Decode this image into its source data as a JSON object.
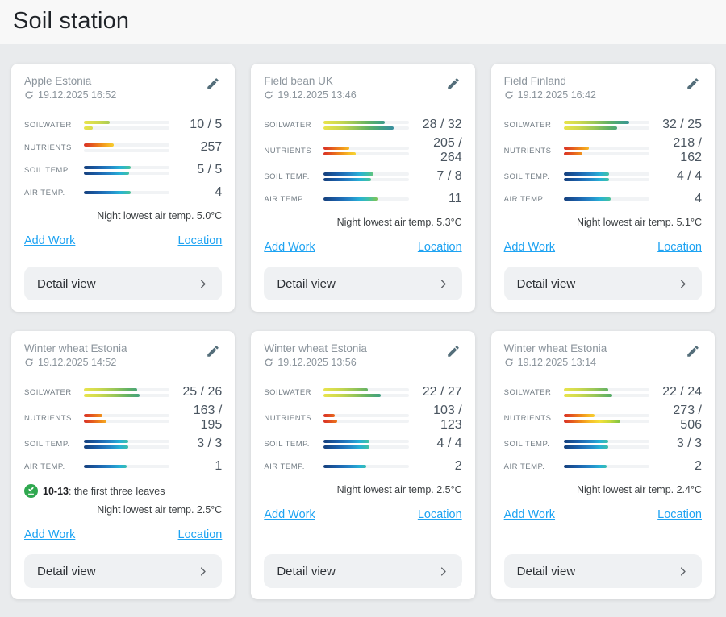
{
  "page": {
    "title": "Soil station"
  },
  "shared": {
    "add_work_label": "Add Work",
    "location_label": "Location",
    "detail_view_label": "Detail view"
  },
  "colors": {
    "page_bg": "#e9ebed",
    "header_bg": "#f8f8f8",
    "card_bg": "#ffffff",
    "button_bg": "#eff1f3",
    "link_blue": "#1ea3f2",
    "muted_text": "#8c959d",
    "value_text": "#4a5560",
    "stage_green": "#2fa84f",
    "scale_water": [
      "#e9e44c",
      "#62b164",
      "#2f7ba6"
    ],
    "scale_nutrients": [
      "#d93025",
      "#f4e03a",
      "#43a047"
    ],
    "scale_temp": [
      "#16407c",
      "#27b0d6",
      "#e2502c"
    ]
  },
  "cards": [
    {
      "title": "Apple Estonia",
      "timestamp": "19.12.2025 16:52",
      "night_temp": "Night lowest air temp. 5.0°C",
      "metrics": [
        {
          "label": "SOILWATER",
          "value": "10 / 5",
          "scale": "water",
          "bars": [
            30,
            10
          ]
        },
        {
          "label": "NUTRIENTS",
          "value": "257",
          "scale": "nutrients",
          "bars": [
            35,
            0
          ]
        },
        {
          "label": "SOIL TEMP.",
          "value": "5 / 5",
          "scale": "temp",
          "bars": [
            55,
            53
          ]
        },
        {
          "label": "AIR TEMP.",
          "value": "4",
          "scale": "temp",
          "bars": [
            55
          ]
        }
      ]
    },
    {
      "title": "Field bean UK",
      "timestamp": "19.12.2025 13:46",
      "night_temp": "Night lowest air temp. 5.3°C",
      "metrics": [
        {
          "label": "SOILWATER",
          "value": "28 / 32",
          "scale": "water",
          "bars": [
            71,
            82
          ]
        },
        {
          "label": "NUTRIENTS",
          "value": "205 / 264",
          "scale": "nutrients",
          "bars": [
            30,
            37
          ]
        },
        {
          "label": "SOIL TEMP.",
          "value": "7 / 8",
          "scale": "temp",
          "bars": [
            58,
            55
          ]
        },
        {
          "label": "AIR TEMP.",
          "value": "11",
          "scale": "temp",
          "bars": [
            63
          ]
        }
      ]
    },
    {
      "title": "Field Finland",
      "timestamp": "19.12.2025 16:42",
      "night_temp": "Night lowest air temp. 5.1°C",
      "metrics": [
        {
          "label": "SOILWATER",
          "value": "32 / 25",
          "scale": "water",
          "bars": [
            77,
            63
          ]
        },
        {
          "label": "NUTRIENTS",
          "value": "218 / 162",
          "scale": "nutrients",
          "bars": [
            30,
            22
          ]
        },
        {
          "label": "SOIL TEMP.",
          "value": "4 / 4",
          "scale": "temp",
          "bars": [
            53,
            53
          ]
        },
        {
          "label": "AIR TEMP.",
          "value": "4",
          "scale": "temp",
          "bars": [
            55
          ]
        }
      ]
    },
    {
      "title": "Winter wheat Estonia",
      "timestamp": "19.12.2025 14:52",
      "night_temp": "Night lowest air temp. 2.5°C",
      "stage": {
        "code": "10-13",
        "text": ": the first three leaves"
      },
      "metrics": [
        {
          "label": "SOILWATER",
          "value": "25 / 26",
          "scale": "water",
          "bars": [
            62,
            65
          ]
        },
        {
          "label": "NUTRIENTS",
          "value": "163 / 195",
          "scale": "nutrients",
          "bars": [
            22,
            26
          ]
        },
        {
          "label": "SOIL TEMP.",
          "value": "3 / 3",
          "scale": "temp",
          "bars": [
            52,
            52
          ]
        },
        {
          "label": "AIR TEMP.",
          "value": "1",
          "scale": "temp",
          "bars": [
            50
          ]
        }
      ]
    },
    {
      "title": "Winter wheat Estonia",
      "timestamp": "19.12.2025 13:56",
      "night_temp": "Night lowest air temp. 2.5°C",
      "metrics": [
        {
          "label": "SOILWATER",
          "value": "22 / 27",
          "scale": "water",
          "bars": [
            52,
            67
          ]
        },
        {
          "label": "NUTRIENTS",
          "value": "103 / 123",
          "scale": "nutrients",
          "bars": [
            13,
            16
          ]
        },
        {
          "label": "SOIL TEMP.",
          "value": "4 / 4",
          "scale": "temp",
          "bars": [
            53,
            53
          ]
        },
        {
          "label": "AIR TEMP.",
          "value": "2",
          "scale": "temp",
          "bars": [
            50
          ]
        }
      ]
    },
    {
      "title": "Winter wheat Estonia",
      "timestamp": "19.12.2025 13:14",
      "night_temp": "Night lowest air temp. 2.4°C",
      "metrics": [
        {
          "label": "SOILWATER",
          "value": "22 / 24",
          "scale": "water",
          "bars": [
            52,
            57
          ]
        },
        {
          "label": "NUTRIENTS",
          "value": "273 / 506",
          "scale": "nutrients",
          "bars": [
            36,
            66
          ]
        },
        {
          "label": "SOIL TEMP.",
          "value": "3 / 3",
          "scale": "temp",
          "bars": [
            52,
            52
          ]
        },
        {
          "label": "AIR TEMP.",
          "value": "2",
          "scale": "temp",
          "bars": [
            50
          ]
        }
      ]
    }
  ]
}
